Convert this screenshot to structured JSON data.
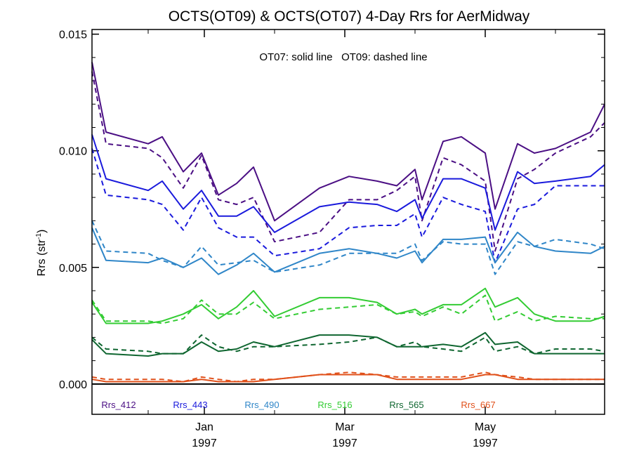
{
  "chart_data": {
    "type": "line",
    "title": "OCTS(OT09) & OCTS(OT07) 4-Day Rrs for AerMidway",
    "annotation": "OT07: solid line   OT09: dashed line",
    "ylabel_main": "Rrs (str",
    "ylabel_sup": "-1",
    "ylabel_close": ")",
    "ylim": [
      -0.0013,
      0.0152
    ],
    "xlim": [
      0,
      36.5
    ],
    "y_ticks": [
      {
        "value": 0.0,
        "label": "0.000"
      },
      {
        "value": 0.005,
        "label": "0.005"
      },
      {
        "value": 0.01,
        "label": "0.010"
      },
      {
        "value": 0.015,
        "label": "0.015"
      }
    ],
    "x_ticks": [
      {
        "month": "Jan",
        "year": "1997",
        "x": 8
      },
      {
        "month": "Mar",
        "year": "1997",
        "x": 18
      },
      {
        "month": "May",
        "year": "1997",
        "x": 28
      }
    ],
    "x_minor_ticks": [
      4,
      13,
      23,
      33
    ],
    "x": [
      0,
      1,
      4,
      5,
      6.5,
      7.8,
      9,
      10.3,
      11.5,
      13,
      16.2,
      18.3,
      20.3,
      21.7,
      23,
      23.5,
      25,
      26.3,
      28,
      28.7,
      30.3,
      31.5,
      33,
      35.5,
      36.5
    ],
    "series": [
      {
        "name": "Rrs_412",
        "color": "#4b0f84",
        "solid": [
          0.0138,
          0.0108,
          0.0103,
          0.0106,
          0.0091,
          0.0099,
          0.0081,
          0.0086,
          0.0093,
          0.007,
          0.0084,
          0.0089,
          0.0087,
          0.0085,
          0.0092,
          0.0079,
          0.0104,
          0.0106,
          0.0099,
          0.0075,
          0.0103,
          0.0099,
          0.0101,
          0.0108,
          0.012
        ],
        "dashed": [
          0.0134,
          0.0103,
          0.0101,
          0.0097,
          0.0084,
          0.0098,
          0.0079,
          0.0077,
          0.008,
          0.0061,
          0.0065,
          0.0079,
          0.0079,
          0.0083,
          0.0089,
          0.007,
          0.0097,
          0.0094,
          0.0087,
          0.0057,
          0.0088,
          0.0092,
          0.0099,
          0.0106,
          0.0112
        ]
      },
      {
        "name": "Rrs_443",
        "color": "#1a1adc",
        "solid": [
          0.0107,
          0.0088,
          0.0083,
          0.0087,
          0.0075,
          0.0083,
          0.0072,
          0.0072,
          0.0076,
          0.0065,
          0.0076,
          0.0078,
          0.0077,
          0.0074,
          0.0079,
          0.0071,
          0.0088,
          0.0088,
          0.0084,
          0.0066,
          0.0091,
          0.0086,
          0.0087,
          0.0089,
          0.0094
        ],
        "dashed": [
          0.0101,
          0.0081,
          0.0079,
          0.0077,
          0.0066,
          0.008,
          0.0067,
          0.0063,
          0.0063,
          0.0055,
          0.0058,
          0.0067,
          0.0068,
          0.0068,
          0.0073,
          0.0063,
          0.008,
          0.0077,
          0.0074,
          0.0052,
          0.0075,
          0.0077,
          0.0085,
          0.0085,
          0.0085
        ]
      },
      {
        "name": "Rrs_490",
        "color": "#2f86c8",
        "solid": [
          0.0067,
          0.0053,
          0.0052,
          0.0054,
          0.005,
          0.0054,
          0.0047,
          0.0051,
          0.0056,
          0.0048,
          0.0056,
          0.0058,
          0.0056,
          0.0054,
          0.0057,
          0.0052,
          0.0062,
          0.0062,
          0.0063,
          0.0052,
          0.0065,
          0.0059,
          0.0057,
          0.0056,
          0.0059
        ],
        "dashed": [
          0.007,
          0.0057,
          0.0056,
          0.0053,
          0.005,
          0.0059,
          0.0051,
          0.0052,
          0.0053,
          0.0048,
          0.0051,
          0.0056,
          0.0056,
          0.0056,
          0.006,
          0.0053,
          0.0061,
          0.006,
          0.006,
          0.0047,
          0.0061,
          0.0059,
          0.0062,
          0.006,
          0.0058
        ]
      },
      {
        "name": "Rrs_516",
        "color": "#33cc33",
        "solid": [
          0.0035,
          0.0026,
          0.0026,
          0.0027,
          0.003,
          0.0034,
          0.0028,
          0.0033,
          0.004,
          0.0029,
          0.0037,
          0.0037,
          0.0035,
          0.003,
          0.0032,
          0.003,
          0.0034,
          0.0034,
          0.0041,
          0.0033,
          0.0037,
          0.003,
          0.0027,
          0.0027,
          0.0029
        ],
        "dashed": [
          0.0036,
          0.0027,
          0.0027,
          0.0026,
          0.0028,
          0.0036,
          0.003,
          0.003,
          0.0035,
          0.0028,
          0.0032,
          0.0033,
          0.0034,
          0.003,
          0.0031,
          0.0029,
          0.0033,
          0.003,
          0.0038,
          0.0027,
          0.0031,
          0.0027,
          0.0029,
          0.0028,
          0.0028
        ]
      },
      {
        "name": "Rrs_565",
        "color": "#0f6630",
        "solid": [
          0.0019,
          0.0013,
          0.0012,
          0.0013,
          0.0013,
          0.0018,
          0.0014,
          0.0015,
          0.0018,
          0.0016,
          0.0021,
          0.0021,
          0.002,
          0.0016,
          0.0016,
          0.0016,
          0.0017,
          0.0016,
          0.0022,
          0.0017,
          0.0018,
          0.0013,
          0.0013,
          0.0013,
          0.0013
        ],
        "dashed": [
          0.002,
          0.0015,
          0.0014,
          0.0013,
          0.0013,
          0.0021,
          0.0016,
          0.0014,
          0.0016,
          0.0016,
          0.0017,
          0.0018,
          0.002,
          0.0016,
          0.0018,
          0.0016,
          0.0015,
          0.0014,
          0.002,
          0.0014,
          0.0016,
          0.0013,
          0.0015,
          0.0015,
          0.0014
        ]
      },
      {
        "name": "Rrs_667",
        "color": "#e0501a",
        "solid": [
          0.0002,
          0.0001,
          0.0001,
          0.0001,
          0.0001,
          0.0002,
          0.0001,
          0.0001,
          0.0001,
          0.0002,
          0.0004,
          0.0004,
          0.0004,
          0.0002,
          0.0002,
          0.0002,
          0.0002,
          0.0002,
          0.0004,
          0.0004,
          0.0002,
          0.0002,
          0.0002,
          0.0002,
          0.0002
        ],
        "dashed": [
          0.0003,
          0.0002,
          0.0002,
          0.0002,
          0.0001,
          0.0003,
          0.0002,
          0.0001,
          0.0002,
          0.0002,
          0.0004,
          0.0005,
          0.0004,
          0.0003,
          0.0003,
          0.0003,
          0.0003,
          0.0003,
          0.0005,
          0.0004,
          0.0003,
          0.0002,
          0.0002,
          0.0002,
          0.0002
        ]
      }
    ],
    "zero_line": true,
    "legend_placement": "bottom inside plot"
  }
}
